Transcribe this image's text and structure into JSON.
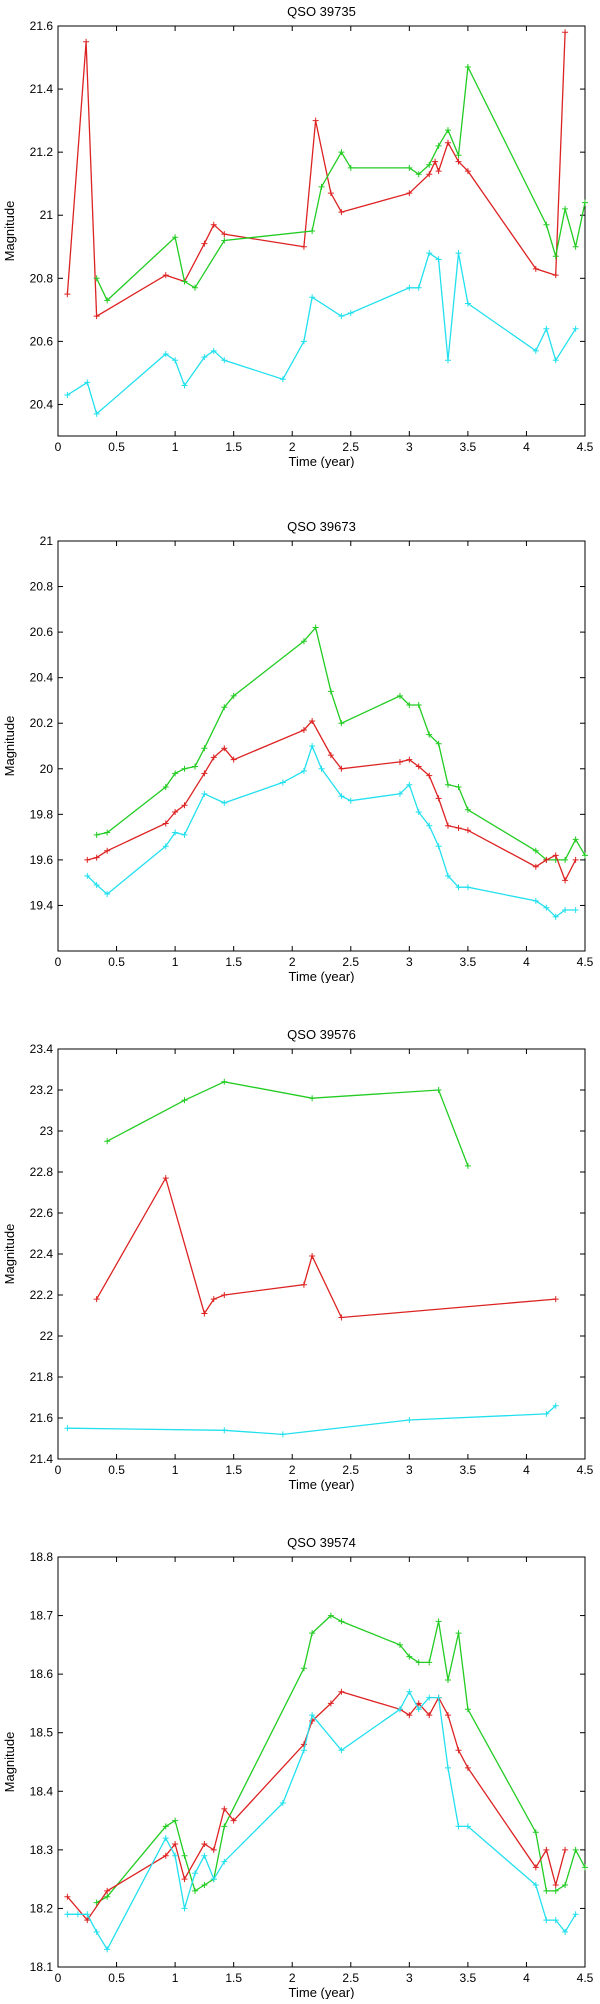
{
  "colors": {
    "green": "#22cc22",
    "red": "#dd2222",
    "cyan": "#22e0ee",
    "axis": "#000000"
  },
  "chart_data": [
    {
      "type": "line",
      "title": "QSO 39735",
      "xlabel": "Time (year)",
      "ylabel": "Magnitude",
      "xlim": [
        0,
        4.5
      ],
      "ylim": [
        20.3,
        21.6
      ],
      "xticks": [
        "0",
        "0.5",
        "1",
        "1.5",
        "2",
        "2.5",
        "3",
        "3.5",
        "4",
        "4.5"
      ],
      "yticks": [
        "20.4",
        "20.6",
        "20.8",
        "21",
        "21.2",
        "21.4",
        "21.6"
      ],
      "grid": false,
      "series": [
        {
          "color": "red",
          "x": [
            0.08,
            0.24,
            0.33,
            0.92,
            1.08,
            1.25,
            1.33,
            1.42,
            2.1,
            2.2,
            2.33,
            2.42,
            3.0,
            3.17,
            3.22,
            3.25,
            3.33,
            3.42,
            3.5,
            4.08,
            4.25,
            4.33
          ],
          "y": [
            20.75,
            21.55,
            20.68,
            20.81,
            20.79,
            20.91,
            20.97,
            20.94,
            20.9,
            21.3,
            21.07,
            21.01,
            21.07,
            21.13,
            21.17,
            21.14,
            21.23,
            21.17,
            21.14,
            20.83,
            20.81,
            21.58
          ]
        },
        {
          "color": "green",
          "x": [
            0.33,
            0.42,
            1.0,
            1.08,
            1.17,
            1.42,
            2.17,
            2.25,
            2.42,
            2.5,
            3.0,
            3.08,
            3.17,
            3.25,
            3.33,
            3.42,
            3.5,
            4.17,
            4.25,
            4.33,
            4.42,
            4.5
          ],
          "y": [
            20.8,
            20.73,
            20.93,
            20.79,
            20.77,
            20.92,
            20.95,
            21.09,
            21.2,
            21.15,
            21.15,
            21.13,
            21.16,
            21.22,
            21.27,
            21.19,
            21.47,
            20.97,
            20.87,
            21.02,
            20.9,
            21.04
          ]
        },
        {
          "color": "cyan",
          "x": [
            0.08,
            0.25,
            0.33,
            0.92,
            1.0,
            1.08,
            1.25,
            1.33,
            1.42,
            1.92,
            2.1,
            2.17,
            2.42,
            2.5,
            3.0,
            3.08,
            3.17,
            3.25,
            3.33,
            3.42,
            3.5,
            4.08,
            4.17,
            4.25,
            4.42
          ],
          "y": [
            20.43,
            20.47,
            20.37,
            20.56,
            20.54,
            20.46,
            20.55,
            20.57,
            20.54,
            20.48,
            20.6,
            20.74,
            20.68,
            20.69,
            20.77,
            20.77,
            20.88,
            20.86,
            20.54,
            20.88,
            20.72,
            20.57,
            20.64,
            20.54,
            20.64
          ]
        }
      ]
    },
    {
      "type": "line",
      "title": "QSO 39673",
      "xlabel": "Time (year)",
      "ylabel": "Magnitude",
      "xlim": [
        0,
        4.5
      ],
      "ylim": [
        19.2,
        21.0
      ],
      "xticks": [
        "0",
        "0.5",
        "1",
        "1.5",
        "2",
        "2.5",
        "3",
        "3.5",
        "4",
        "4.5"
      ],
      "yticks": [
        "19.4",
        "19.6",
        "19.8",
        "20",
        "20.2",
        "20.4",
        "20.6",
        "20.8",
        "21"
      ],
      "grid": false,
      "series": [
        {
          "color": "green",
          "x": [
            0.33,
            0.42,
            0.92,
            1.0,
            1.08,
            1.17,
            1.25,
            1.42,
            1.5,
            2.1,
            2.2,
            2.33,
            2.42,
            2.92,
            3.0,
            3.08,
            3.17,
            3.25,
            3.33,
            3.42,
            3.5,
            4.08,
            4.17,
            4.25,
            4.33,
            4.42,
            4.5
          ],
          "y": [
            19.71,
            19.72,
            19.92,
            19.98,
            20.0,
            20.01,
            20.09,
            20.27,
            20.32,
            20.56,
            20.62,
            20.34,
            20.2,
            20.32,
            20.28,
            20.28,
            20.15,
            20.11,
            19.93,
            19.92,
            19.82,
            19.64,
            19.6,
            19.6,
            19.6,
            19.69,
            19.62
          ]
        },
        {
          "color": "red",
          "x": [
            0.25,
            0.33,
            0.42,
            0.92,
            1.0,
            1.08,
            1.25,
            1.33,
            1.42,
            1.5,
            2.1,
            2.17,
            2.33,
            2.42,
            2.92,
            3.0,
            3.08,
            3.17,
            3.25,
            3.33,
            3.42,
            3.5,
            4.08,
            4.17,
            4.25,
            4.33,
            4.42
          ],
          "y": [
            19.6,
            19.61,
            19.64,
            19.76,
            19.81,
            19.84,
            19.98,
            20.05,
            20.09,
            20.04,
            20.17,
            20.21,
            20.06,
            20.0,
            20.03,
            20.04,
            20.01,
            19.97,
            19.87,
            19.75,
            19.74,
            19.73,
            19.57,
            19.6,
            19.62,
            19.51,
            19.6
          ]
        },
        {
          "color": "cyan",
          "x": [
            0.25,
            0.33,
            0.42,
            0.92,
            1.0,
            1.08,
            1.25,
            1.42,
            1.92,
            2.1,
            2.17,
            2.25,
            2.42,
            2.5,
            2.92,
            3.0,
            3.08,
            3.17,
            3.25,
            3.33,
            3.42,
            3.5,
            4.08,
            4.17,
            4.25,
            4.33,
            4.42
          ],
          "y": [
            19.53,
            19.49,
            19.45,
            19.66,
            19.72,
            19.71,
            19.89,
            19.85,
            19.94,
            19.99,
            20.1,
            20.0,
            19.88,
            19.86,
            19.89,
            19.93,
            19.81,
            19.75,
            19.66,
            19.53,
            19.48,
            19.48,
            19.42,
            19.39,
            19.35,
            19.38,
            19.38
          ]
        }
      ]
    },
    {
      "type": "line",
      "title": "QSO 39576",
      "xlabel": "Time (year)",
      "ylabel": "Magnitude",
      "xlim": [
        0,
        4.5
      ],
      "ylim": [
        21.4,
        23.4
      ],
      "xticks": [
        "0",
        "0.5",
        "1",
        "1.5",
        "2",
        "2.5",
        "3",
        "3.5",
        "4",
        "4.5"
      ],
      "yticks": [
        "21.4",
        "21.6",
        "21.8",
        "22",
        "22.2",
        "22.4",
        "22.6",
        "22.8",
        "23",
        "23.2",
        "23.4"
      ],
      "grid": false,
      "series": [
        {
          "color": "green",
          "x": [
            0.42,
            1.08,
            1.42,
            2.17,
            3.25,
            3.5
          ],
          "y": [
            22.95,
            23.15,
            23.24,
            23.16,
            23.2,
            22.83
          ]
        },
        {
          "color": "red",
          "x": [
            0.33,
            0.92,
            1.25,
            1.33,
            1.42,
            2.1,
            2.17,
            2.42,
            4.25
          ],
          "y": [
            22.18,
            22.77,
            22.11,
            22.18,
            22.2,
            22.25,
            22.39,
            22.09,
            22.18
          ]
        },
        {
          "color": "cyan",
          "x": [
            0.08,
            1.42,
            1.92,
            3.0,
            4.17,
            4.25
          ],
          "y": [
            21.55,
            21.54,
            21.52,
            21.59,
            21.62,
            21.66
          ]
        }
      ]
    },
    {
      "type": "line",
      "title": "QSO 39574",
      "xlabel": "Time (year)",
      "ylabel": "Magnitude",
      "xlim": [
        0,
        4.5
      ],
      "ylim": [
        18.1,
        18.8
      ],
      "xticks": [
        "0",
        "0.5",
        "1",
        "1.5",
        "2",
        "2.5",
        "3",
        "3.5",
        "4",
        "4.5"
      ],
      "yticks": [
        "18.1",
        "18.2",
        "18.3",
        "18.4",
        "18.5",
        "18.6",
        "18.7",
        "18.8"
      ],
      "grid": false,
      "series": [
        {
          "color": "green",
          "x": [
            0.33,
            0.42,
            0.92,
            1.0,
            1.08,
            1.17,
            1.25,
            1.33,
            1.42,
            2.1,
            2.17,
            2.33,
            2.42,
            2.92,
            3.0,
            3.08,
            3.17,
            3.25,
            3.33,
            3.42,
            3.5,
            4.08,
            4.17,
            4.25,
            4.33,
            4.42,
            4.5
          ],
          "y": [
            18.21,
            18.22,
            18.34,
            18.35,
            18.29,
            18.23,
            18.24,
            18.25,
            18.34,
            18.61,
            18.67,
            18.7,
            18.69,
            18.65,
            18.63,
            18.62,
            18.62,
            18.69,
            18.59,
            18.67,
            18.54,
            18.33,
            18.23,
            18.23,
            18.24,
            18.3,
            18.27
          ]
        },
        {
          "color": "red",
          "x": [
            0.08,
            0.25,
            0.42,
            0.92,
            1.0,
            1.08,
            1.25,
            1.33,
            1.42,
            1.5,
            2.1,
            2.17,
            2.33,
            2.42,
            2.92,
            3.0,
            3.08,
            3.17,
            3.25,
            3.33,
            3.42,
            3.5,
            4.08,
            4.17,
            4.25,
            4.33
          ],
          "y": [
            18.22,
            18.18,
            18.23,
            18.29,
            18.31,
            18.25,
            18.31,
            18.3,
            18.37,
            18.35,
            18.48,
            18.52,
            18.55,
            18.57,
            18.54,
            18.53,
            18.55,
            18.53,
            18.56,
            18.53,
            18.47,
            18.44,
            18.27,
            18.3,
            18.24,
            18.3
          ]
        },
        {
          "color": "cyan",
          "x": [
            0.08,
            0.17,
            0.25,
            0.33,
            0.42,
            0.92,
            1.0,
            1.08,
            1.17,
            1.25,
            1.33,
            1.42,
            1.92,
            2.1,
            2.17,
            2.42,
            2.92,
            3.0,
            3.08,
            3.17,
            3.25,
            3.33,
            3.42,
            3.5,
            4.08,
            4.17,
            4.25,
            4.33,
            4.42
          ],
          "y": [
            18.19,
            18.19,
            18.19,
            18.16,
            18.13,
            18.32,
            18.29,
            18.2,
            18.26,
            18.29,
            18.25,
            18.28,
            18.38,
            18.47,
            18.53,
            18.47,
            18.54,
            18.57,
            18.54,
            18.56,
            18.56,
            18.44,
            18.34,
            18.34,
            18.24,
            18.18,
            18.18,
            18.16,
            18.19
          ]
        }
      ]
    }
  ]
}
